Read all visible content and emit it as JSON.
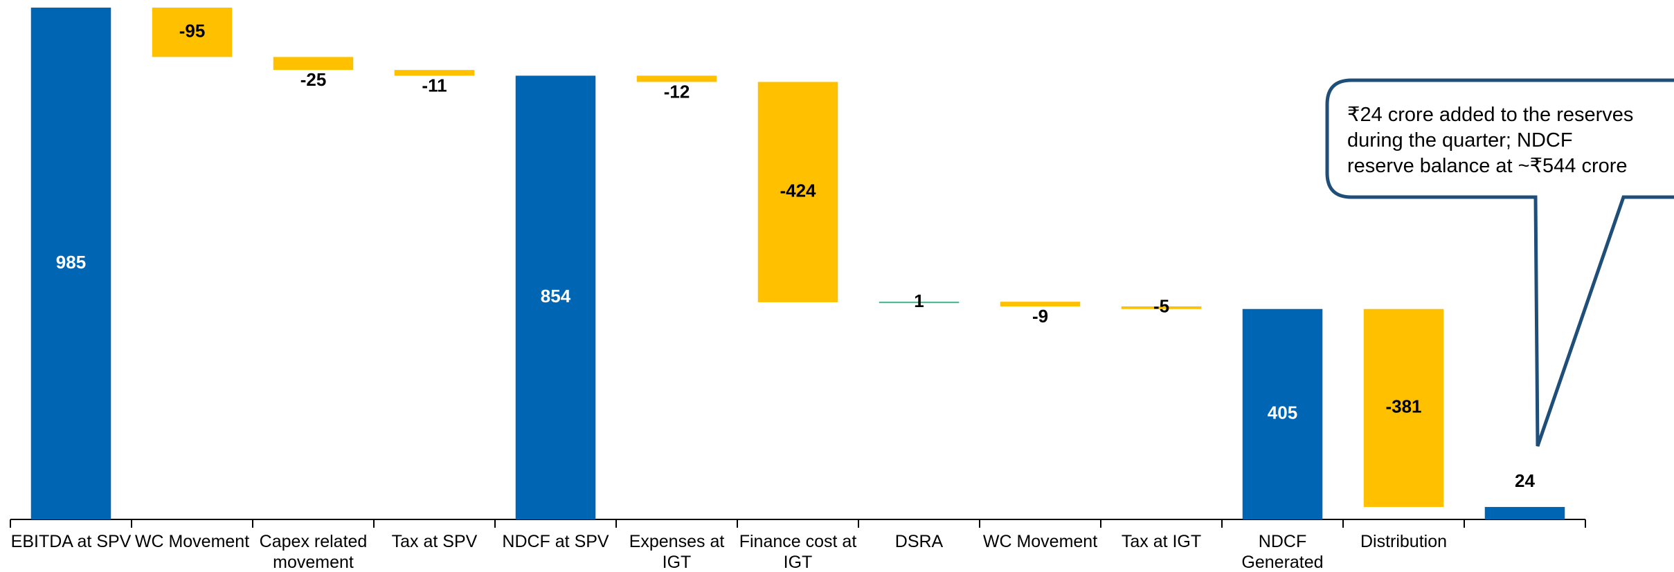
{
  "chart_data": {
    "type": "waterfall",
    "categories": [
      "EBITDA at SPV",
      "WC Movement",
      "Capex related movement",
      "Tax at SPV",
      "NDCF at SPV",
      "Expenses at IGT",
      "Finance cost at IGT",
      "DSRA",
      "WC Movement",
      "Tax at IGT",
      "NDCF Generated",
      "Distribution",
      null
    ],
    "values": [
      985,
      -95,
      -25,
      -11,
      854,
      -12,
      -424,
      1,
      -9,
      -5,
      405,
      -381,
      24
    ],
    "measure": [
      "absolute",
      "relative",
      "relative",
      "relative",
      "absolute",
      "relative",
      "relative",
      "relative",
      "relative",
      "relative",
      "absolute",
      "relative",
      "absolute"
    ],
    "colors": [
      "#0066b3",
      "#ffc000",
      "#ffc000",
      "#ffc000",
      "#0066b3",
      "#ffc000",
      "#ffc000",
      "#3cb48a",
      "#ffc000",
      "#ffc000",
      "#0066b3",
      "#ffc000",
      "#0066b3"
    ],
    "ylim": [
      0,
      985
    ],
    "annotation": [
      "₹24 crore added to the reserves",
      "during the quarter; NDCF",
      "reserve balance at ~₹544 crore"
    ]
  }
}
